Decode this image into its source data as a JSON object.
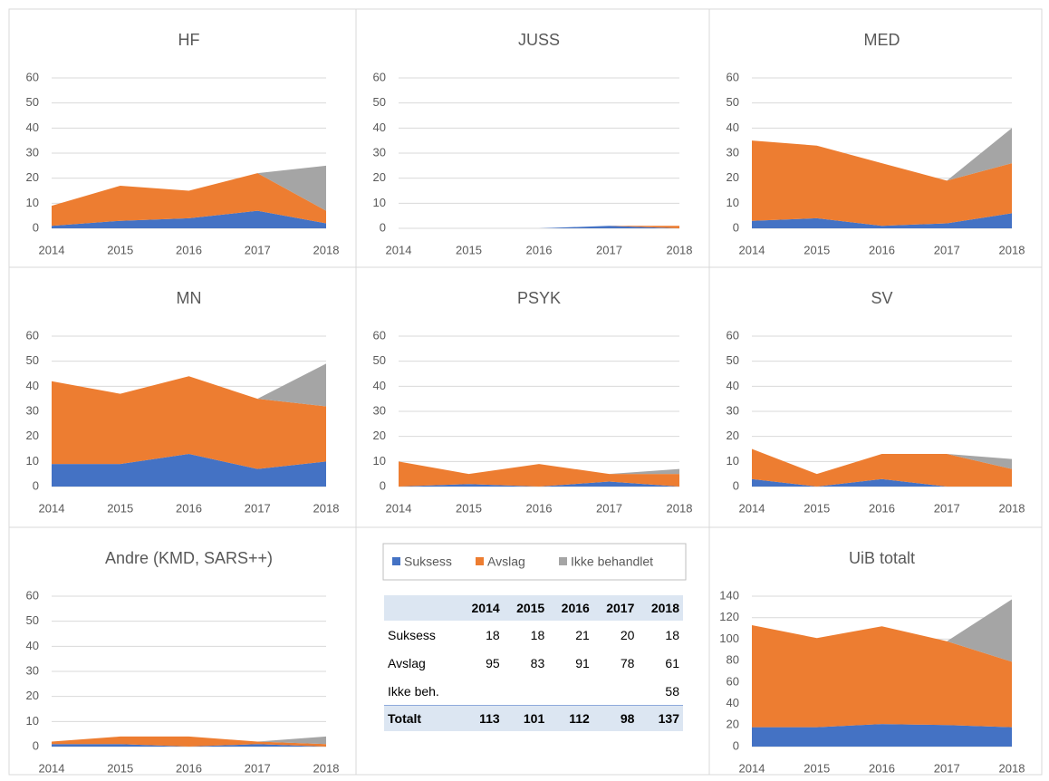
{
  "chart_data": [
    {
      "type": "stacked_area",
      "title": "HF",
      "categories": [
        "2014",
        "2015",
        "2016",
        "2017",
        "2018"
      ],
      "ylim": [
        0,
        60
      ],
      "yticks": [
        0,
        10,
        20,
        30,
        40,
        50,
        60
      ],
      "grid": true,
      "series": [
        {
          "name": "Suksess",
          "color": "#4472c4",
          "values": [
            1,
            3,
            4,
            7,
            2
          ]
        },
        {
          "name": "Avslag",
          "color": "#ed7d31",
          "values": [
            8,
            14,
            11,
            15,
            5
          ]
        },
        {
          "name": "Ikke behandlet",
          "color": "#a5a5a5",
          "values": [
            0,
            0,
            0,
            0,
            18
          ]
        }
      ]
    },
    {
      "type": "stacked_area",
      "title": "JUSS",
      "categories": [
        "2014",
        "2015",
        "2016",
        "2017",
        "2018"
      ],
      "ylim": [
        0,
        60
      ],
      "yticks": [
        0,
        10,
        20,
        30,
        40,
        50,
        60
      ],
      "grid": true,
      "series": [
        {
          "name": "Suksess",
          "color": "#4472c4",
          "values": [
            0,
            0,
            0,
            1,
            0
          ]
        },
        {
          "name": "Avslag",
          "color": "#ed7d31",
          "values": [
            0,
            0,
            0,
            0,
            1
          ]
        },
        {
          "name": "Ikke behandlet",
          "color": "#a5a5a5",
          "values": [
            0,
            0,
            0,
            0,
            0
          ]
        }
      ]
    },
    {
      "type": "stacked_area",
      "title": "MED",
      "categories": [
        "2014",
        "2015",
        "2016",
        "2017",
        "2018"
      ],
      "ylim": [
        0,
        60
      ],
      "yticks": [
        0,
        10,
        20,
        30,
        40,
        50,
        60
      ],
      "grid": true,
      "series": [
        {
          "name": "Suksess",
          "color": "#4472c4",
          "values": [
            3,
            4,
            1,
            2,
            6
          ]
        },
        {
          "name": "Avslag",
          "color": "#ed7d31",
          "values": [
            32,
            29,
            25,
            17,
            20
          ]
        },
        {
          "name": "Ikke behandlet",
          "color": "#a5a5a5",
          "values": [
            0,
            0,
            0,
            0,
            14
          ]
        }
      ]
    },
    {
      "type": "stacked_area",
      "title": "MN",
      "categories": [
        "2014",
        "2015",
        "2016",
        "2017",
        "2018"
      ],
      "ylim": [
        0,
        60
      ],
      "yticks": [
        0,
        10,
        20,
        30,
        40,
        50,
        60
      ],
      "grid": true,
      "series": [
        {
          "name": "Suksess",
          "color": "#4472c4",
          "values": [
            9,
            9,
            13,
            7,
            10
          ]
        },
        {
          "name": "Avslag",
          "color": "#ed7d31",
          "values": [
            33,
            28,
            31,
            28,
            22
          ]
        },
        {
          "name": "Ikke behandlet",
          "color": "#a5a5a5",
          "values": [
            0,
            0,
            0,
            0,
            17
          ]
        }
      ]
    },
    {
      "type": "stacked_area",
      "title": "PSYK",
      "categories": [
        "2014",
        "2015",
        "2016",
        "2017",
        "2018"
      ],
      "ylim": [
        0,
        60
      ],
      "yticks": [
        0,
        10,
        20,
        30,
        40,
        50,
        60
      ],
      "grid": true,
      "series": [
        {
          "name": "Suksess",
          "color": "#4472c4",
          "values": [
            0,
            1,
            0,
            2,
            0
          ]
        },
        {
          "name": "Avslag",
          "color": "#ed7d31",
          "values": [
            10,
            4,
            9,
            3,
            5
          ]
        },
        {
          "name": "Ikke behandlet",
          "color": "#a5a5a5",
          "values": [
            0,
            0,
            0,
            0,
            2
          ]
        }
      ]
    },
    {
      "type": "stacked_area",
      "title": "SV",
      "categories": [
        "2014",
        "2015",
        "2016",
        "2017",
        "2018"
      ],
      "ylim": [
        0,
        60
      ],
      "yticks": [
        0,
        10,
        20,
        30,
        40,
        50,
        60
      ],
      "grid": true,
      "series": [
        {
          "name": "Suksess",
          "color": "#4472c4",
          "values": [
            3,
            0,
            3,
            0,
            0
          ]
        },
        {
          "name": "Avslag",
          "color": "#ed7d31",
          "values": [
            12,
            5,
            10,
            13,
            7
          ]
        },
        {
          "name": "Ikke behandlet",
          "color": "#a5a5a5",
          "values": [
            0,
            0,
            0,
            0,
            4
          ]
        }
      ]
    },
    {
      "type": "stacked_area",
      "title": "Andre (KMD, SARS++)",
      "categories": [
        "2014",
        "2015",
        "2016",
        "2017",
        "2018"
      ],
      "ylim": [
        0,
        60
      ],
      "yticks": [
        0,
        10,
        20,
        30,
        40,
        50,
        60
      ],
      "grid": true,
      "series": [
        {
          "name": "Suksess",
          "color": "#4472c4",
          "values": [
            1,
            1,
            0,
            1,
            0
          ]
        },
        {
          "name": "Avslag",
          "color": "#ed7d31",
          "values": [
            1,
            3,
            4,
            1,
            1
          ]
        },
        {
          "name": "Ikke behandlet",
          "color": "#a5a5a5",
          "values": [
            0,
            0,
            0,
            0,
            3
          ]
        }
      ]
    },
    {
      "type": "stacked_area",
      "title": "UiB totalt",
      "categories": [
        "2014",
        "2015",
        "2016",
        "2017",
        "2018"
      ],
      "ylim": [
        0,
        140
      ],
      "yticks": [
        0,
        20,
        40,
        60,
        80,
        100,
        120,
        140
      ],
      "grid": true,
      "series": [
        {
          "name": "Suksess",
          "color": "#4472c4",
          "values": [
            18,
            18,
            21,
            20,
            18
          ]
        },
        {
          "name": "Avslag",
          "color": "#ed7d31",
          "values": [
            95,
            83,
            91,
            78,
            61
          ]
        },
        {
          "name": "Ikke behandlet",
          "color": "#a5a5a5",
          "values": [
            0,
            0,
            0,
            0,
            58
          ]
        }
      ]
    }
  ],
  "table": {
    "columns": [
      "2014",
      "2015",
      "2016",
      "2017",
      "2018"
    ],
    "rows": [
      {
        "label": "Suksess",
        "values": [
          18,
          18,
          21,
          20,
          18
        ]
      },
      {
        "label": "Avslag",
        "values": [
          95,
          83,
          91,
          78,
          61
        ]
      },
      {
        "label": "Ikke beh.",
        "values": [
          null,
          null,
          null,
          null,
          58
        ]
      }
    ],
    "total": {
      "label": "Totalt",
      "values": [
        113,
        101,
        112,
        98,
        137
      ]
    }
  }
}
